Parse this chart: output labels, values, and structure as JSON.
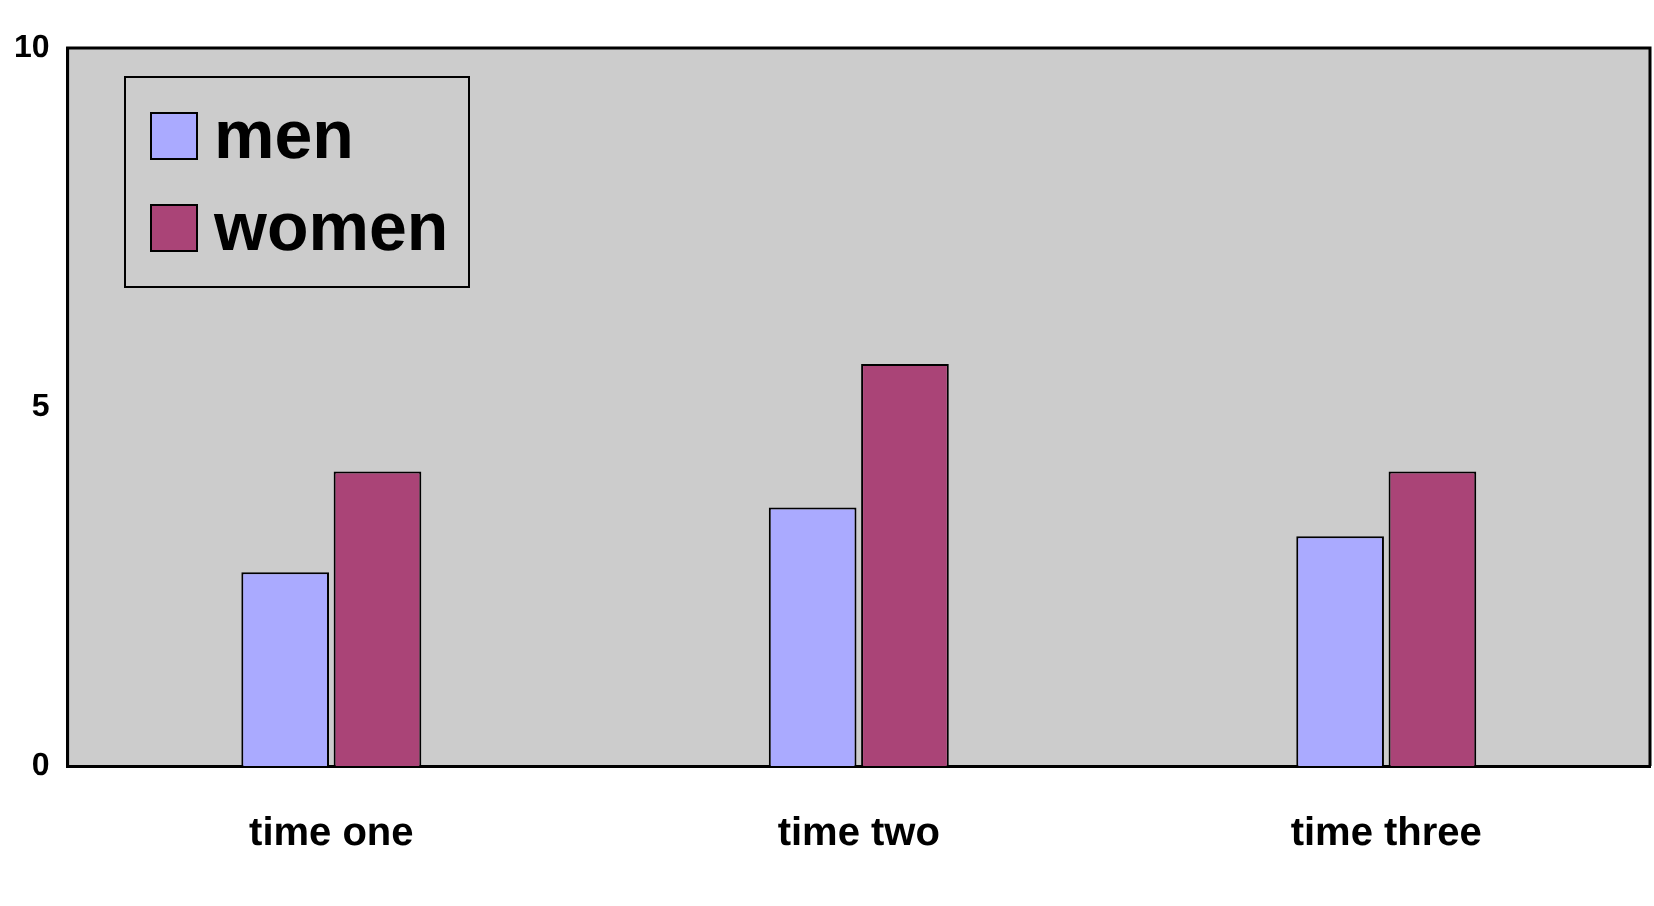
{
  "chart_data": {
    "type": "bar",
    "categories": [
      "time one",
      "time two",
      "time three"
    ],
    "series": [
      {
        "name": "men",
        "color": "#aaaaff",
        "values": [
          2.7,
          3.6,
          3.2
        ]
      },
      {
        "name": "women",
        "color": "#aa4477",
        "values": [
          4.1,
          5.6,
          4.1
        ]
      }
    ],
    "ylim": [
      0,
      10
    ],
    "yticks": [
      0,
      5,
      10
    ],
    "grid": false,
    "legend": "top left"
  }
}
